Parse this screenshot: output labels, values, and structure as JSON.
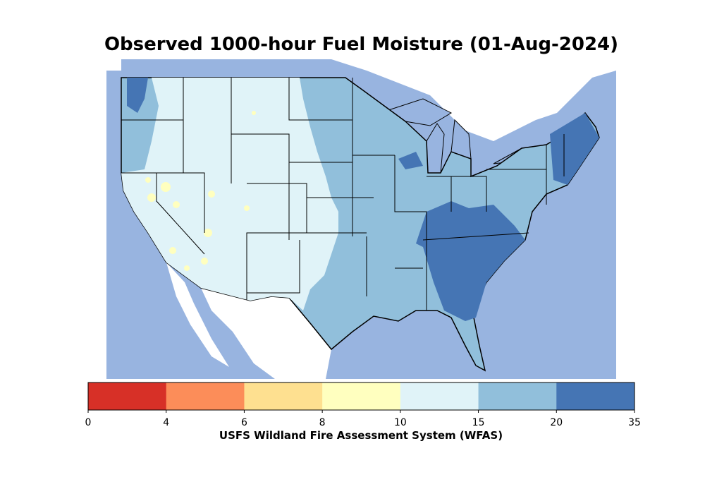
{
  "title": "Observed 1000-hour Fuel Moisture (01-Aug-2024)",
  "colorbar": {
    "label": "USFS Wildland Fire Assessment System (WFAS)",
    "ticks": [
      "0",
      "4",
      "6",
      "8",
      "10",
      "15",
      "20",
      "35"
    ],
    "bins": [
      {
        "min": 0,
        "max": 4,
        "color": "#d73027"
      },
      {
        "min": 4,
        "max": 6,
        "color": "#fc8d59"
      },
      {
        "min": 6,
        "max": 8,
        "color": "#fee090"
      },
      {
        "min": 8,
        "max": 10,
        "color": "#ffffbf"
      },
      {
        "min": 10,
        "max": 15,
        "color": "#e0f3f8"
      },
      {
        "min": 15,
        "max": 20,
        "color": "#91bfdb"
      },
      {
        "min": 20,
        "max": 35,
        "color": "#4575b4"
      }
    ]
  },
  "colors": {
    "water": "#98b4e0",
    "land_outside": "#ffffff",
    "borders": "#000000"
  }
}
